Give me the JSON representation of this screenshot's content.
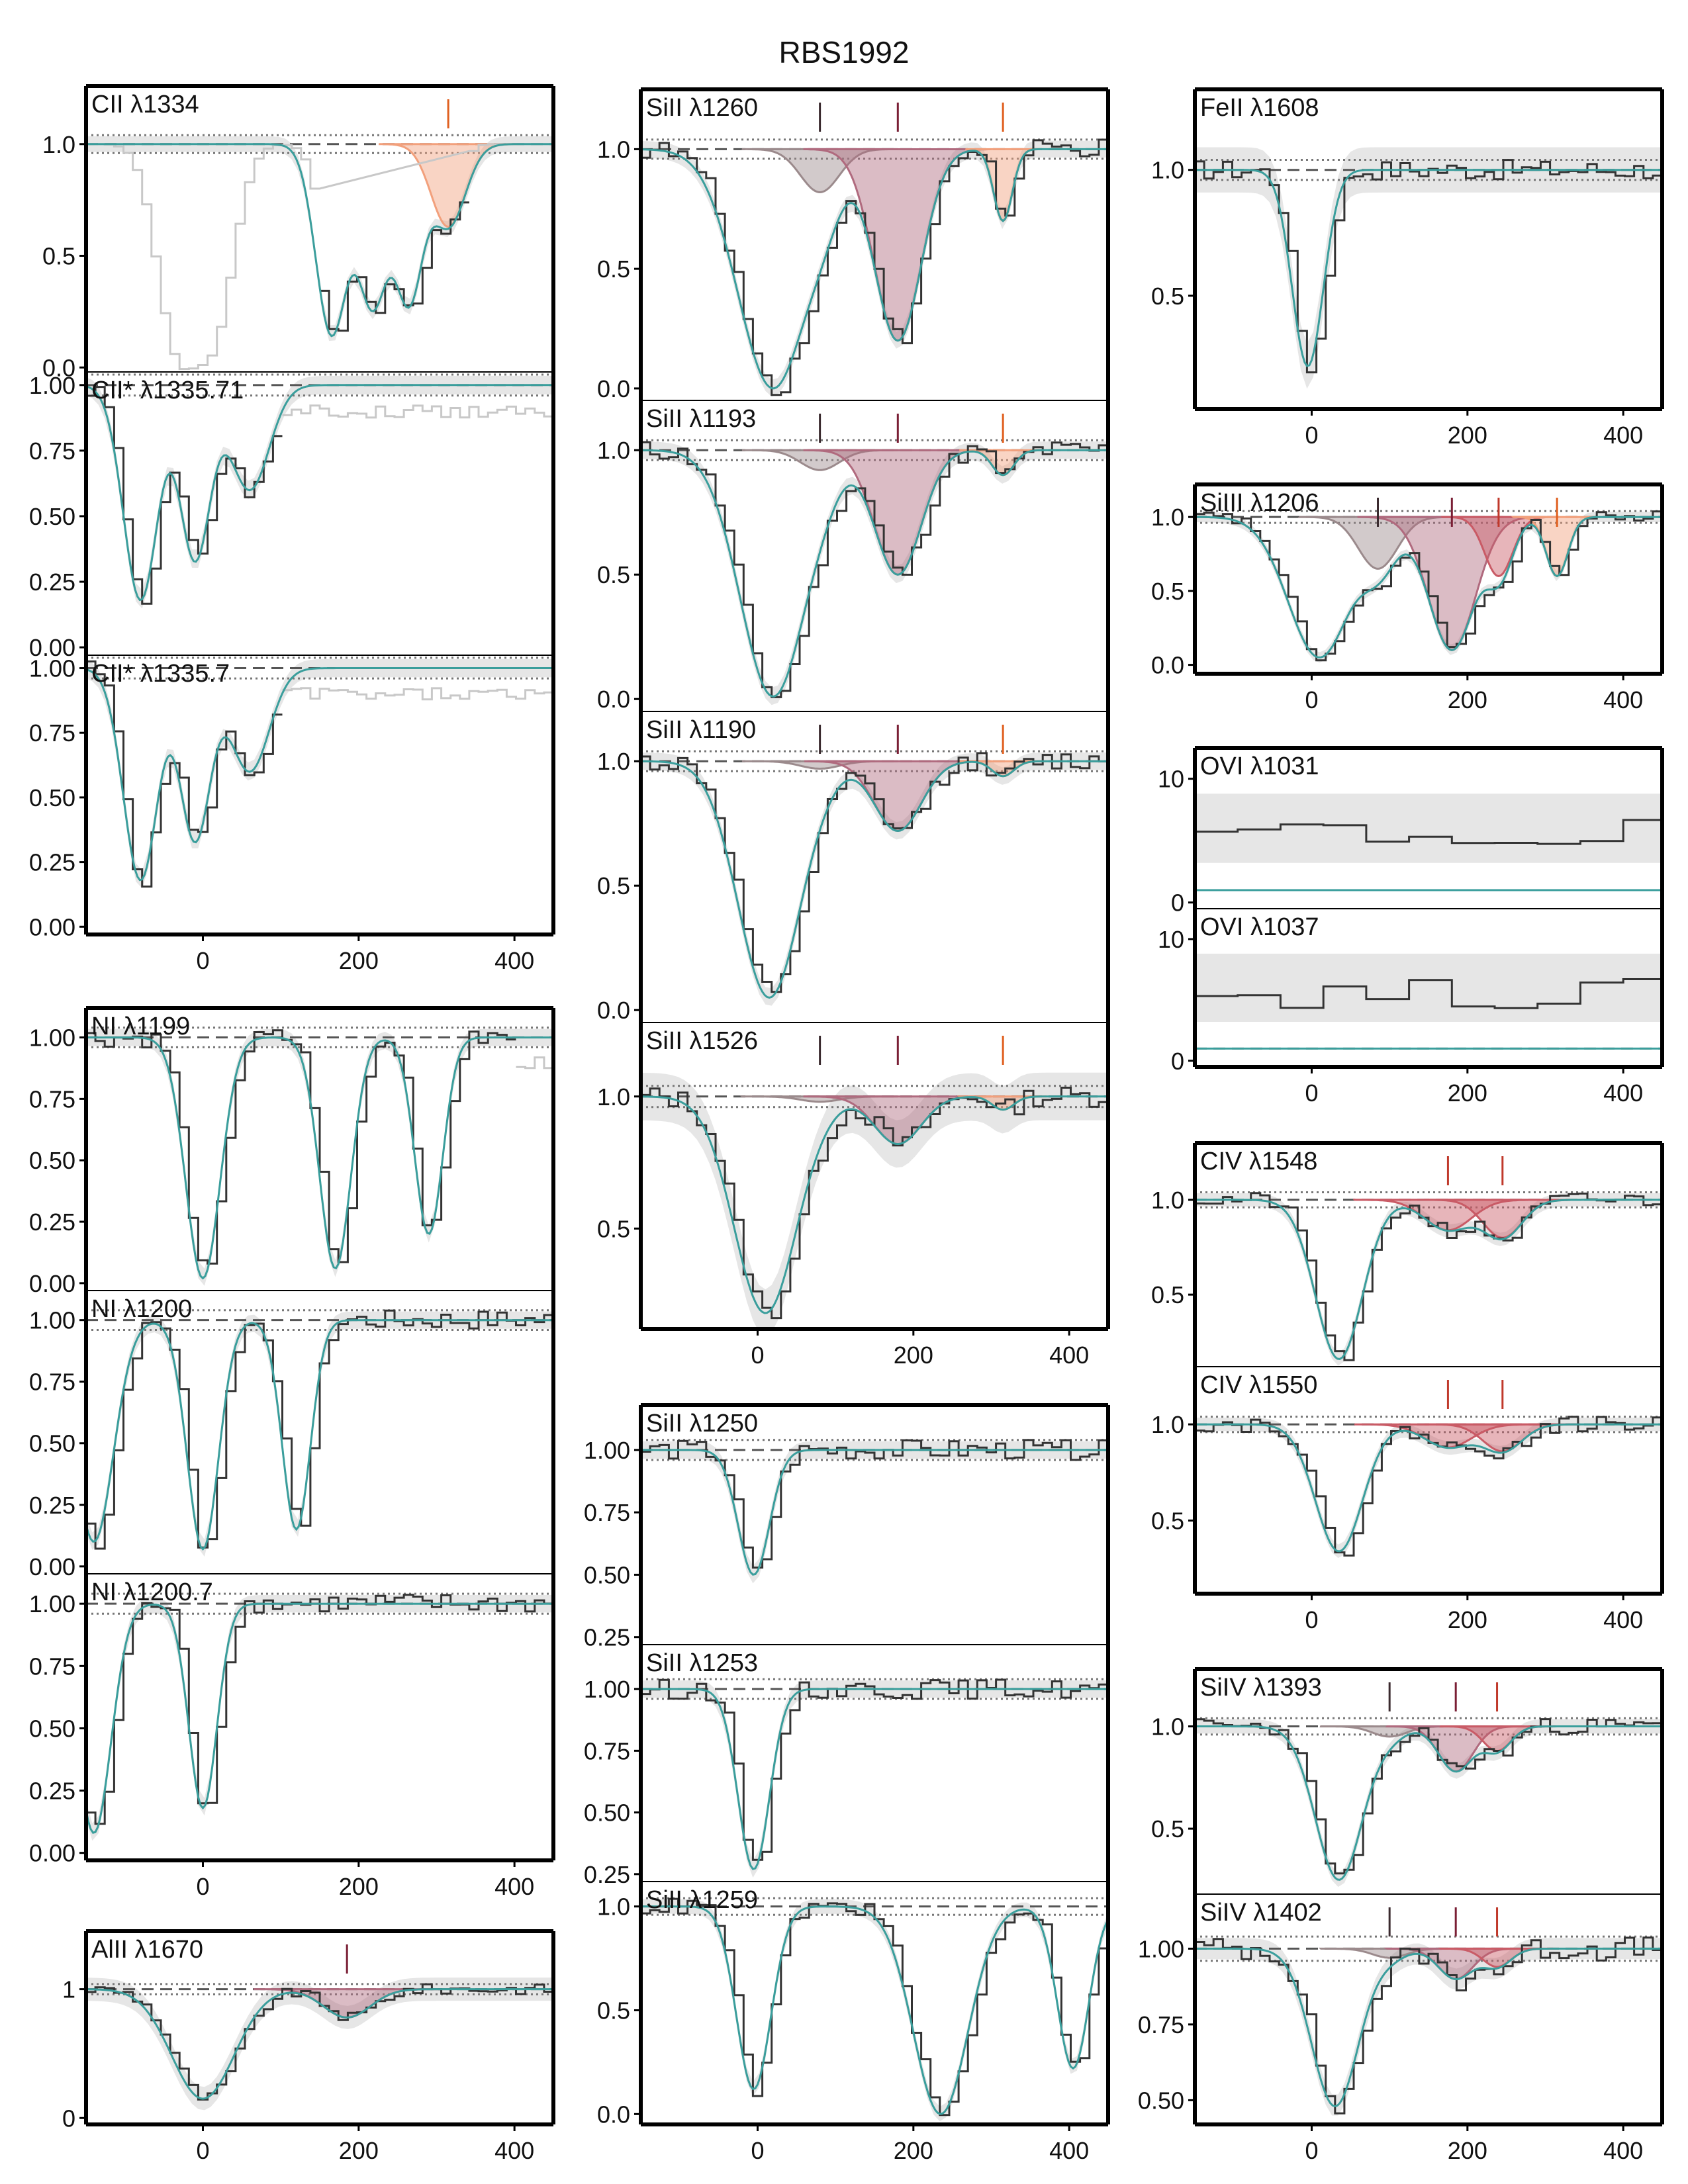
{
  "figure_title": "RBS1992",
  "colors": {
    "model": "#3a9e9c",
    "data": "#333333",
    "contaminant": "#c8c8c8",
    "uncertainty": "#e6e6e6",
    "comp_gray": "#9b8a8c",
    "comp_maroon": "#b06a7e",
    "comp_red": "#c95b66",
    "comp_orange": "#f2a07c",
    "tick_gray": "#3a2a2e",
    "tick_maroon": "#7a1f35",
    "tick_red": "#c0392b",
    "tick_orange": "#e06020"
  },
  "chart_data": {
    "type": "line",
    "title": "RBS1992",
    "xlim": [
      -150,
      450
    ],
    "x_ticks": [
      "0",
      "200",
      "400"
    ],
    "panels": [
      {
        "label": "CII λ1334",
        "col": 0,
        "ylim": [
          -0.02,
          1.26
        ],
        "yticks": [
          "0.0",
          "0.5",
          "1.0"
        ],
        "ytick_values": [
          0,
          0.5,
          1
        ],
        "model_lines": [
          {
            "c": -5,
            "d": 0.0
          }
        ],
        "data_lines": [
          {
            "c": -40,
            "d": 0.85,
            "w": 25
          },
          {
            "c": 10,
            "d": 0.8,
            "w": 25
          },
          {
            "c": 175,
            "d": 0.82,
            "w": 22
          },
          {
            "c": 250,
            "d": 0.68,
            "w": 20
          },
          {
            "c": 305,
            "d": 0.45,
            "w": 16
          }
        ],
        "data_range": [
          150,
          340
        ],
        "components": [
          {
            "c": 315,
            "d": 0.37,
            "w": 22,
            "color": "orange"
          }
        ],
        "ticks": [
          {
            "v": 315,
            "color": "orange"
          }
        ]
      },
      {
        "label": "CII* λ1335.71",
        "col": 0,
        "ylim": [
          -0.03,
          1.05
        ],
        "yticks": [
          "0.00",
          "0.25",
          "0.50",
          "0.75",
          "1.00"
        ],
        "ytick_values": [
          0,
          0.25,
          0.5,
          0.75,
          1
        ],
        "model_lines": [
          {
            "c": -80,
            "d": 0.82,
            "w": 22
          },
          {
            "c": -10,
            "d": 0.67,
            "w": 20
          },
          {
            "c": 60,
            "d": 0.4,
            "w": 25
          }
        ],
        "data_range": [
          -150,
          100
        ],
        "components": [],
        "ticks": []
      },
      {
        "label": "CII* λ1335.7",
        "col": 0,
        "ylim": [
          -0.03,
          1.05
        ],
        "yticks": [
          "0.00",
          "0.25",
          "0.50",
          "0.75",
          "1.00"
        ],
        "ytick_values": [
          0,
          0.25,
          0.5,
          0.75,
          1
        ],
        "model_lines": [
          {
            "c": -80,
            "d": 0.82,
            "w": 22
          },
          {
            "c": -10,
            "d": 0.67,
            "w": 20
          },
          {
            "c": 60,
            "d": 0.4,
            "w": 25
          }
        ],
        "data_range": [
          -150,
          100
        ],
        "components": [],
        "ticks": []
      },
      {
        "label": "NI λ1199",
        "col": 0,
        "ylim": [
          -0.03,
          1.12
        ],
        "yticks": [
          "0.00",
          "0.25",
          "0.50",
          "0.75",
          "1.00"
        ],
        "ytick_values": [
          0,
          0.25,
          0.5,
          0.75,
          1
        ],
        "model_lines": [
          {
            "c": 0,
            "d": 0.98,
            "w": 22
          },
          {
            "c": 170,
            "d": 0.94,
            "w": 20
          },
          {
            "c": 290,
            "d": 0.8,
            "w": 18
          }
        ],
        "data_range": [
          -150,
          400
        ],
        "components": [],
        "ticks": []
      },
      {
        "label": "NI λ1200",
        "col": 0,
        "ylim": [
          -0.03,
          1.12
        ],
        "yticks": [
          "0.00",
          "0.25",
          "0.50",
          "0.75",
          "1.00"
        ],
        "ytick_values": [
          0,
          0.25,
          0.5,
          0.75,
          1
        ],
        "model_lines": [
          {
            "c": -140,
            "d": 0.9,
            "w": 25
          },
          {
            "c": 0,
            "d": 0.93,
            "w": 20
          },
          {
            "c": 120,
            "d": 0.85,
            "w": 18
          }
        ],
        "data_range": [
          -150,
          450
        ],
        "components": [],
        "ticks": []
      },
      {
        "label": "NI λ1200.7",
        "col": 0,
        "ylim": [
          -0.03,
          1.12
        ],
        "yticks": [
          "0.00",
          "0.25",
          "0.50",
          "0.75",
          "1.00"
        ],
        "ytick_values": [
          0,
          0.25,
          0.5,
          0.75,
          1
        ],
        "model_lines": [
          {
            "c": -140,
            "d": 0.92,
            "w": 22
          },
          {
            "c": 0,
            "d": 0.82,
            "w": 18
          }
        ],
        "data_range": [
          -150,
          450
        ],
        "components": [],
        "ticks": []
      },
      {
        "label": "AlII λ1670",
        "col": 0,
        "ylim": [
          -0.05,
          1.45
        ],
        "yticks": [
          "0",
          "1"
        ],
        "ytick_values": [
          0,
          1
        ],
        "model_lines": [
          {
            "c": 0,
            "d": 0.85,
            "w": 40
          }
        ],
        "data_range": [
          -150,
          450
        ],
        "components": [
          {
            "c": 185,
            "d": 0.22,
            "w": 30,
            "color": "maroon"
          }
        ],
        "ticks": [
          {
            "v": 185,
            "color": "maroon"
          }
        ]
      },
      {
        "label": "SiII λ1260",
        "col": 1,
        "ylim": [
          -0.05,
          1.25
        ],
        "yticks": [
          "0.0",
          "0.5",
          "1.0"
        ],
        "ytick_values": [
          0,
          0.5,
          1
        ],
        "model_lines": [
          {
            "c": 20,
            "d": 1.0,
            "w": 45
          }
        ],
        "data_range": [
          -150,
          450
        ],
        "components": [
          {
            "c": 80,
            "d": 0.18,
            "w": 25,
            "color": "gray"
          },
          {
            "c": 180,
            "d": 0.8,
            "w": 30,
            "color": "maroon"
          },
          {
            "c": 315,
            "d": 0.3,
            "w": 12,
            "color": "orange"
          }
        ],
        "ticks": [
          {
            "v": 80,
            "color": "gray"
          },
          {
            "v": 180,
            "color": "maroon"
          },
          {
            "v": 315,
            "color": "orange"
          }
        ]
      },
      {
        "label": "SiII λ1193",
        "col": 1,
        "ylim": [
          -0.05,
          1.2
        ],
        "yticks": [
          "0.0",
          "0.5",
          "1.0"
        ],
        "ytick_values": [
          0,
          0.5,
          1
        ],
        "model_lines": [
          {
            "c": 20,
            "d": 0.99,
            "w": 42
          }
        ],
        "data_range": [
          -150,
          450
        ],
        "components": [
          {
            "c": 80,
            "d": 0.08,
            "w": 25,
            "color": "gray"
          },
          {
            "c": 180,
            "d": 0.5,
            "w": 30,
            "color": "maroon"
          },
          {
            "c": 315,
            "d": 0.1,
            "w": 14,
            "color": "orange"
          }
        ],
        "ticks": [
          {
            "v": 80,
            "color": "gray"
          },
          {
            "v": 180,
            "color": "maroon"
          },
          {
            "v": 315,
            "color": "orange"
          }
        ]
      },
      {
        "label": "SiII λ1190",
        "col": 1,
        "ylim": [
          -0.05,
          1.2
        ],
        "yticks": [
          "0.0",
          "0.5",
          "1.0"
        ],
        "ytick_values": [
          0,
          0.5,
          1
        ],
        "model_lines": [
          {
            "c": 15,
            "d": 0.95,
            "w": 40
          }
        ],
        "data_range": [
          -150,
          450
        ],
        "components": [
          {
            "c": 80,
            "d": 0.03,
            "w": 25,
            "color": "gray"
          },
          {
            "c": 180,
            "d": 0.28,
            "w": 30,
            "color": "maroon"
          },
          {
            "c": 315,
            "d": 0.06,
            "w": 14,
            "color": "orange"
          }
        ],
        "ticks": [
          {
            "v": 80,
            "color": "gray"
          },
          {
            "v": 180,
            "color": "maroon"
          },
          {
            "v": 315,
            "color": "orange"
          }
        ]
      },
      {
        "label": "SiII λ1526",
        "col": 1,
        "ylim": [
          0.12,
          1.28
        ],
        "yticks": [
          "0.5",
          "1.0"
        ],
        "ytick_values": [
          0.5,
          1
        ],
        "model_lines": [
          {
            "c": 10,
            "d": 0.82,
            "w": 40
          }
        ],
        "data_range": [
          -150,
          450
        ],
        "components": [
          {
            "c": 80,
            "d": 0.02,
            "w": 25,
            "color": "gray"
          },
          {
            "c": 180,
            "d": 0.18,
            "w": 30,
            "color": "maroon"
          },
          {
            "c": 315,
            "d": 0.05,
            "w": 14,
            "color": "orange"
          }
        ],
        "ticks": [
          {
            "v": 80,
            "color": "gray"
          },
          {
            "v": 180,
            "color": "maroon"
          },
          {
            "v": 315,
            "color": "orange"
          }
        ]
      },
      {
        "label": "SiII λ1250",
        "col": 1,
        "ylim": [
          0.22,
          1.18
        ],
        "yticks": [
          "0.25",
          "0.50",
          "0.75",
          "1.00"
        ],
        "ytick_values": [
          0.25,
          0.5,
          0.75,
          1
        ],
        "model_lines": [
          {
            "c": -5,
            "d": 0.5,
            "w": 20
          }
        ],
        "data_range": [
          -150,
          450
        ],
        "components": [],
        "ticks": []
      },
      {
        "label": "SiII λ1253",
        "col": 1,
        "ylim": [
          0.22,
          1.18
        ],
        "yticks": [
          "0.25",
          "0.50",
          "0.75",
          "1.00"
        ],
        "ytick_values": [
          0.25,
          0.5,
          0.75,
          1
        ],
        "model_lines": [
          {
            "c": -5,
            "d": 0.73,
            "w": 20
          }
        ],
        "data_range": [
          -150,
          450
        ],
        "components": [],
        "ticks": []
      },
      {
        "label": "SiII λ1259",
        "col": 1,
        "ylim": [
          -0.05,
          1.12
        ],
        "yticks": [
          "0.0",
          "0.5",
          "1.0"
        ],
        "ytick_values": [
          0,
          0.5,
          1
        ],
        "model_lines": [
          {
            "c": -5,
            "d": 0.88,
            "w": 22
          },
          {
            "c": 235,
            "d": 1.0,
            "w": 35
          },
          {
            "c": 405,
            "d": 0.78,
            "w": 20
          }
        ],
        "data_range": [
          -150,
          450
        ],
        "components": [],
        "ticks": []
      },
      {
        "label": "FeII λ1608",
        "col": 2,
        "ylim": [
          0.05,
          1.32
        ],
        "yticks": [
          "0.5",
          "1.0"
        ],
        "ytick_values": [
          0.5,
          1
        ],
        "model_lines": [
          {
            "c": -5,
            "d": 0.78,
            "w": 20
          }
        ],
        "data_range": [
          -150,
          450
        ],
        "components": [],
        "ticks": []
      },
      {
        "label": "SiIII λ1206",
        "col": 2,
        "ylim": [
          -0.06,
          1.22
        ],
        "yticks": [
          "0.0",
          "0.5",
          "1.0"
        ],
        "ytick_values": [
          0,
          0.5,
          1
        ],
        "model_lines": [
          {
            "c": 10,
            "d": 0.95,
            "w": 40
          }
        ],
        "data_range": [
          -150,
          450
        ],
        "components": [
          {
            "c": 85,
            "d": 0.35,
            "w": 25,
            "color": "gray"
          },
          {
            "c": 180,
            "d": 0.9,
            "w": 30,
            "color": "maroon"
          },
          {
            "c": 240,
            "d": 0.4,
            "w": 18,
            "color": "red"
          },
          {
            "c": 315,
            "d": 0.4,
            "w": 14,
            "color": "orange"
          }
        ],
        "ticks": [
          {
            "v": 85,
            "color": "gray"
          },
          {
            "v": 180,
            "color": "maroon"
          },
          {
            "v": 240,
            "color": "red"
          },
          {
            "v": 315,
            "color": "orange"
          }
        ]
      },
      {
        "label": "OVI λ1031",
        "col": 2,
        "ylim": [
          -0.5,
          12.5
        ],
        "yticks": [
          "0",
          "10"
        ],
        "ytick_values": [
          0,
          10
        ],
        "model_lines": [],
        "data_range": [
          -150,
          450
        ],
        "components": [],
        "ticks": []
      },
      {
        "label": "OVI λ1037",
        "col": 2,
        "ylim": [
          -0.5,
          12.5
        ],
        "yticks": [
          "0",
          "10"
        ],
        "ytick_values": [
          0,
          10
        ],
        "model_lines": [],
        "data_range": [
          -150,
          450
        ],
        "components": [],
        "ticks": []
      },
      {
        "label": "CIV λ1548",
        "col": 2,
        "ylim": [
          0.12,
          1.3
        ],
        "yticks": [
          "0.5",
          "1.0"
        ],
        "ytick_values": [
          0.5,
          1
        ],
        "model_lines": [
          {
            "c": 35,
            "d": 0.84,
            "w": 30
          }
        ],
        "data_range": [
          -150,
          450
        ],
        "components": [
          {
            "c": 175,
            "d": 0.16,
            "w": 30,
            "color": "red"
          },
          {
            "c": 245,
            "d": 0.2,
            "w": 25,
            "color": "red"
          }
        ],
        "ticks": [
          {
            "v": 175,
            "color": "red"
          },
          {
            "v": 245,
            "color": "red"
          }
        ]
      },
      {
        "label": "CIV λ1550",
        "col": 2,
        "ylim": [
          0.12,
          1.3
        ],
        "yticks": [
          "0.5",
          "1.0"
        ],
        "ytick_values": [
          0.5,
          1
        ],
        "model_lines": [
          {
            "c": 35,
            "d": 0.66,
            "w": 30
          }
        ],
        "data_range": [
          -150,
          450
        ],
        "components": [
          {
            "c": 175,
            "d": 0.12,
            "w": 30,
            "color": "red"
          },
          {
            "c": 245,
            "d": 0.14,
            "w": 25,
            "color": "red"
          }
        ],
        "ticks": [
          {
            "v": 175,
            "color": "red"
          },
          {
            "v": 245,
            "color": "red"
          }
        ]
      },
      {
        "label": "SiIV λ1393",
        "col": 2,
        "ylim": [
          0.18,
          1.28
        ],
        "yticks": [
          "0.5",
          "1.0"
        ],
        "ytick_values": [
          0.5,
          1
        ],
        "model_lines": [
          {
            "c": 35,
            "d": 0.75,
            "w": 30
          }
        ],
        "data_range": [
          -150,
          450
        ],
        "components": [
          {
            "c": 100,
            "d": 0.05,
            "w": 22,
            "color": "gray"
          },
          {
            "c": 185,
            "d": 0.22,
            "w": 22,
            "color": "maroon"
          },
          {
            "c": 238,
            "d": 0.12,
            "w": 18,
            "color": "red"
          }
        ],
        "ticks": [
          {
            "v": 100,
            "color": "gray"
          },
          {
            "v": 185,
            "color": "maroon"
          },
          {
            "v": 238,
            "color": "red"
          }
        ]
      },
      {
        "label": "SiIV λ1402",
        "col": 2,
        "ylim": [
          0.42,
          1.18
        ],
        "yticks": [
          "0.50",
          "0.75",
          "1.00"
        ],
        "ytick_values": [
          0.5,
          0.75,
          1
        ],
        "model_lines": [
          {
            "c": 30,
            "d": 0.52,
            "w": 30
          }
        ],
        "data_range": [
          -150,
          450
        ],
        "components": [
          {
            "c": 100,
            "d": 0.03,
            "w": 22,
            "color": "gray"
          },
          {
            "c": 185,
            "d": 0.1,
            "w": 22,
            "color": "maroon"
          },
          {
            "c": 238,
            "d": 0.06,
            "w": 18,
            "color": "red"
          }
        ],
        "ticks": [
          {
            "v": 100,
            "color": "gray"
          },
          {
            "v": 185,
            "color": "maroon"
          },
          {
            "v": 238,
            "color": "red"
          }
        ]
      }
    ]
  }
}
